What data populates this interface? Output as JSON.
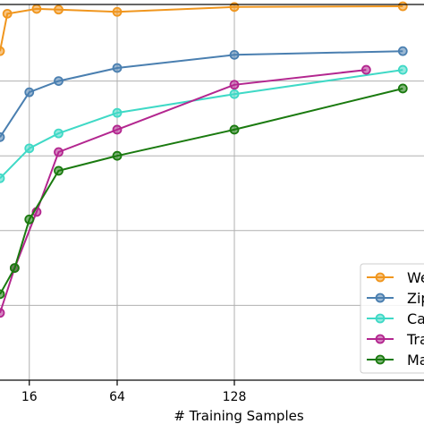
{
  "chart_data": {
    "type": "line",
    "xlabel": "# Training Samples",
    "ylabel": "",
    "title": "",
    "x_ticks": [
      16,
      64,
      128
    ],
    "grid": true,
    "xlim": [
      0,
      220
    ],
    "ylim": [
      0,
      1
    ],
    "legend_position": "lower-right",
    "series": [
      {
        "name": "We",
        "color": "#f0961e",
        "marker": "o",
        "x": [
          0,
          4,
          20,
          32,
          64,
          128,
          220
        ],
        "y": [
          0.88,
          0.98,
          0.993,
          0.991,
          0.985,
          0.998,
          1.0
        ]
      },
      {
        "name": "Zip",
        "color": "#4a7fb0",
        "marker": "o",
        "x": [
          0,
          16,
          32,
          64,
          128,
          220
        ],
        "y": [
          0.65,
          0.77,
          0.8,
          0.835,
          0.87,
          0.88
        ]
      },
      {
        "name": "Ca",
        "color": "#3fd9c6",
        "marker": "o",
        "x": [
          0,
          16,
          32,
          64,
          128,
          220
        ],
        "y": [
          0.54,
          0.62,
          0.66,
          0.715,
          0.765,
          0.83
        ]
      },
      {
        "name": "Tra",
        "color": "#b3268f",
        "marker": "o",
        "x": [
          0,
          8,
          20,
          32,
          64,
          128,
          200
        ],
        "y": [
          0.18,
          0.3,
          0.45,
          0.61,
          0.67,
          0.79,
          0.83
        ]
      },
      {
        "name": "Ma",
        "color": "#1a7a0f",
        "marker": "o",
        "x": [
          0,
          8,
          16,
          32,
          64,
          128,
          220
        ],
        "y": [
          0.23,
          0.3,
          0.43,
          0.56,
          0.6,
          0.67,
          0.78
        ]
      }
    ]
  }
}
